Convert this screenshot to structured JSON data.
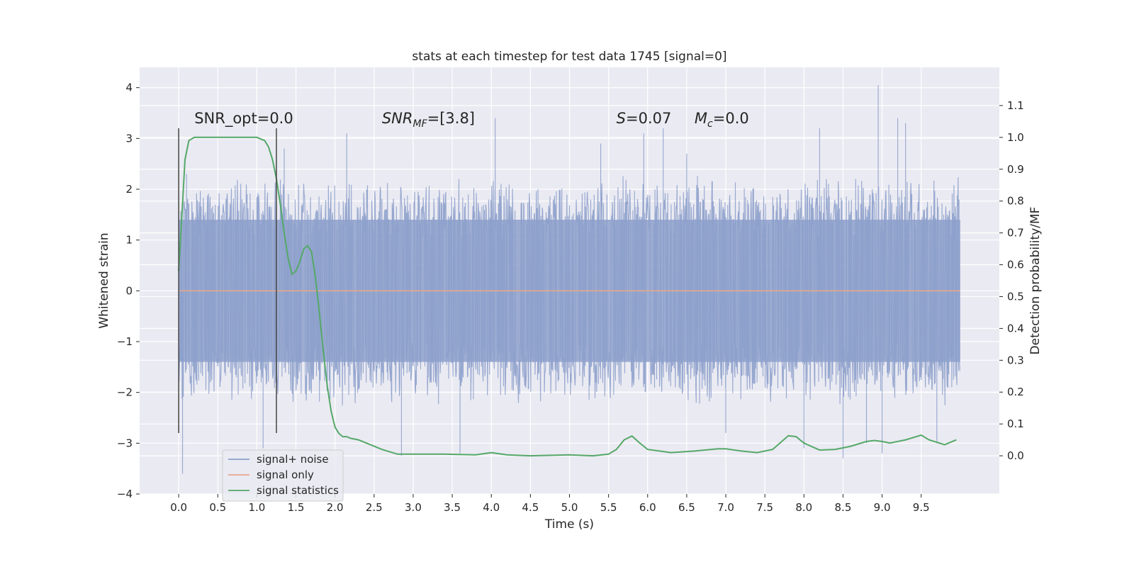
{
  "chart_data": {
    "type": "line",
    "title": "stats at each timestep for test data 1745 [signal=0]",
    "xlabel": "Time (s)",
    "ylabel": "Whitened strain",
    "y2label": "Detection probability/MF",
    "xlim": [
      -0.5,
      10.5
    ],
    "ylim": [
      -4.0,
      4.4
    ],
    "y2lim": [
      -0.12,
      1.22
    ],
    "x_ticks": [
      "0.0",
      "0.5",
      "1.0",
      "1.5",
      "2.0",
      "2.5",
      "3.0",
      "3.5",
      "4.0",
      "4.5",
      "5.0",
      "5.5",
      "6.0",
      "6.5",
      "7.0",
      "7.5",
      "8.0",
      "8.5",
      "9.0",
      "9.5"
    ],
    "y_ticks": [
      "4",
      "3",
      "2",
      "1",
      "0",
      "−1",
      "−2",
      "−3",
      "−4"
    ],
    "y2_ticks": [
      "1.1",
      "1.0",
      "0.9",
      "0.8",
      "0.7",
      "0.6",
      "0.5",
      "0.4",
      "0.3",
      "0.2",
      "0.1",
      "0.0"
    ],
    "grid": true,
    "legend_position": "lower-left",
    "annotations": [
      {
        "text": "SNR_opt=0.0",
        "x": 0.2,
        "y": 3.3
      },
      {
        "text": "SNR",
        "sub": "MF",
        "suffix": "=[3.8]",
        "x": 2.6,
        "y": 3.3
      },
      {
        "text": "S",
        "suffix": "=0.07",
        "x": 5.6,
        "y": 3.3
      },
      {
        "text": "M",
        "sub": "c",
        "suffix": "=0.0",
        "x": 6.6,
        "y": 3.3
      }
    ],
    "vlines": [
      {
        "x": 0.0,
        "ymin": -2.8,
        "ymax": 3.2
      },
      {
        "x": 1.25,
        "ymin": -2.8,
        "ymax": 3.2
      }
    ],
    "series": [
      {
        "name": "signal+ noise",
        "color": "#8da0cb",
        "axis": "left",
        "x_range": [
          0.0,
          10.0
        ],
        "band": [
          -1.4,
          1.4
        ],
        "peaks": [
          [
            0.05,
            -3.6
          ],
          [
            0.1,
            2.3
          ],
          [
            1.08,
            -3.1
          ],
          [
            1.35,
            2.8
          ],
          [
            2.15,
            3.1
          ],
          [
            2.85,
            -3.25
          ],
          [
            3.6,
            -3.2
          ],
          [
            4.05,
            3.4
          ],
          [
            5.4,
            2.9
          ],
          [
            5.95,
            3.1
          ],
          [
            6.2,
            3.2
          ],
          [
            6.5,
            2.7
          ],
          [
            7.0,
            -2.8
          ],
          [
            8.0,
            -3.1
          ],
          [
            8.2,
            3.2
          ],
          [
            8.5,
            -3.3
          ],
          [
            8.8,
            -3.0
          ],
          [
            8.95,
            4.05
          ],
          [
            9.0,
            -3.2
          ],
          [
            9.2,
            3.4
          ],
          [
            9.3,
            3.3
          ],
          [
            9.7,
            -3.0
          ]
        ]
      },
      {
        "name": "signal only",
        "color": "#e5a88c",
        "axis": "left",
        "x": [
          0.0,
          10.0
        ],
        "y": [
          0.0,
          0.0
        ]
      },
      {
        "name": "signal statistics",
        "color": "#55a868",
        "axis": "right",
        "x": [
          0.0,
          0.04,
          0.08,
          0.13,
          0.2,
          0.3,
          0.5,
          0.7,
          0.9,
          1.0,
          1.1,
          1.15,
          1.2,
          1.25,
          1.3,
          1.35,
          1.4,
          1.45,
          1.5,
          1.55,
          1.6,
          1.65,
          1.7,
          1.75,
          1.8,
          1.85,
          1.9,
          1.95,
          2.0,
          2.05,
          2.1,
          2.15,
          2.2,
          2.3,
          2.4,
          2.5,
          2.6,
          2.8,
          3.0,
          3.4,
          3.8,
          4.0,
          4.2,
          4.5,
          5.0,
          5.3,
          5.5,
          5.6,
          5.7,
          5.8,
          5.9,
          6.0,
          6.3,
          6.6,
          6.9,
          7.0,
          7.2,
          7.4,
          7.6,
          7.8,
          7.9,
          8.0,
          8.2,
          8.4,
          8.6,
          8.8,
          8.9,
          9.0,
          9.1,
          9.3,
          9.5,
          9.6,
          9.8,
          9.95
        ],
        "y": [
          0.58,
          0.75,
          0.93,
          0.99,
          1.0,
          1.0,
          1.0,
          1.0,
          1.0,
          1.0,
          0.99,
          0.97,
          0.93,
          0.87,
          0.79,
          0.7,
          0.62,
          0.57,
          0.58,
          0.61,
          0.65,
          0.66,
          0.64,
          0.56,
          0.45,
          0.33,
          0.22,
          0.14,
          0.09,
          0.07,
          0.06,
          0.06,
          0.055,
          0.05,
          0.04,
          0.03,
          0.02,
          0.005,
          0.005,
          0.005,
          0.003,
          0.01,
          0.003,
          0.0,
          0.003,
          0.0,
          0.005,
          0.02,
          0.05,
          0.062,
          0.04,
          0.02,
          0.01,
          0.015,
          0.022,
          0.022,
          0.015,
          0.01,
          0.02,
          0.063,
          0.06,
          0.04,
          0.018,
          0.02,
          0.03,
          0.045,
          0.048,
          0.045,
          0.04,
          0.05,
          0.065,
          0.05,
          0.035,
          0.05
        ]
      }
    ]
  }
}
